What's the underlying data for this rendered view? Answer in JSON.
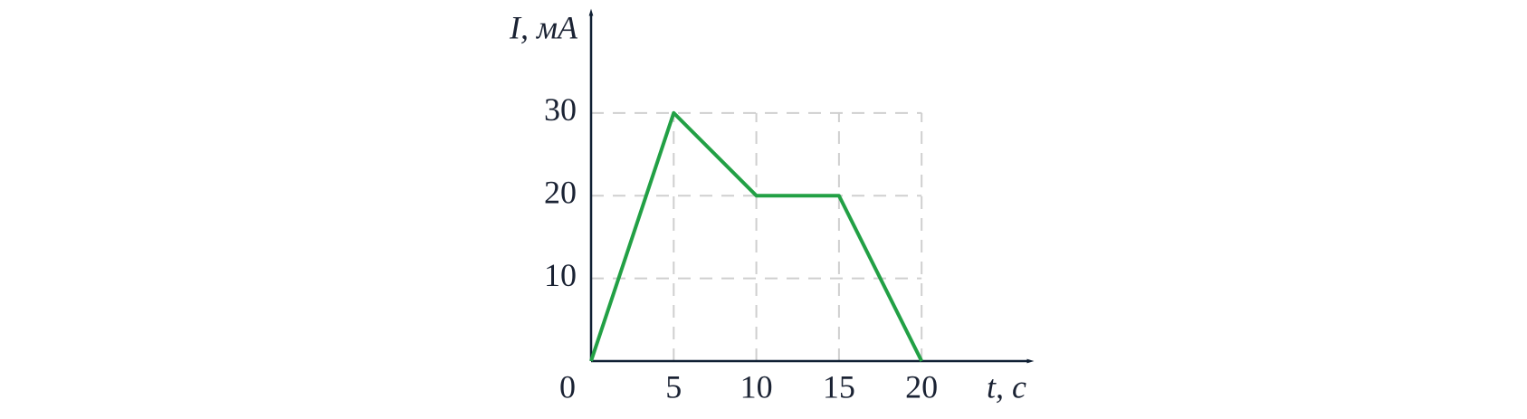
{
  "chart_data": {
    "type": "line",
    "x_label": "t, с",
    "y_label": "I, мА",
    "x": [
      0,
      5,
      10,
      15,
      20
    ],
    "series": [
      {
        "color": "#22a045",
        "values": [
          0,
          30,
          20,
          20,
          0
        ]
      }
    ],
    "xlim": [
      0,
      27
    ],
    "ylim": [
      0,
      43
    ],
    "xticks": [
      0,
      5,
      10,
      15,
      20
    ],
    "yticks": [
      10,
      20,
      30
    ],
    "grid": true
  }
}
